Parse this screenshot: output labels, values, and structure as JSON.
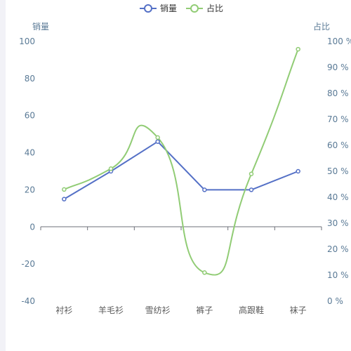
{
  "chart_data": {
    "type": "line",
    "categories": [
      "衬衫",
      "羊毛衫",
      "雪纺衫",
      "裤子",
      "高跟鞋",
      "袜子"
    ],
    "series": [
      {
        "name": "销量",
        "axis": "left",
        "values": [
          15,
          30,
          46,
          20,
          20,
          30
        ],
        "color": "#5470c6",
        "smooth": false
      },
      {
        "name": "占比",
        "axis": "right",
        "values": [
          43,
          51,
          63,
          11,
          49,
          97
        ],
        "color": "#91cc75",
        "smooth": true
      }
    ],
    "y_left": {
      "label": "销量",
      "min": -40,
      "max": 100,
      "interval": 20,
      "tick_labels": [
        "-40",
        "-20",
        "0",
        "20",
        "40",
        "60",
        "80",
        "100"
      ]
    },
    "y_right": {
      "label": "占比",
      "min": 0,
      "max": 100,
      "interval": 10,
      "tick_labels": [
        "0 %",
        "10 %",
        "20 %",
        "30 %",
        "40 %",
        "50 %",
        "60 %",
        "70 %",
        "80 %",
        "90 %",
        "100 %"
      ]
    },
    "legend": {
      "position": "top-center",
      "items": [
        "销量",
        "占比"
      ]
    },
    "grid": false
  }
}
